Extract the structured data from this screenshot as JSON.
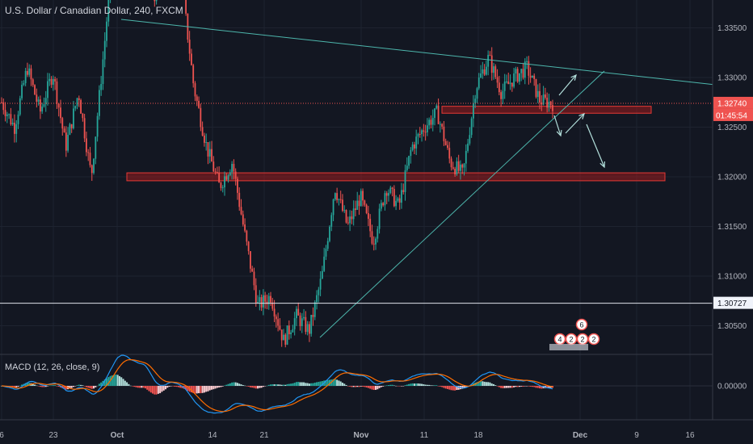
{
  "header": {
    "title": "U.S. Dollar / Canadian Dollar, 240, FXCM"
  },
  "macd": {
    "title": "MACD (12, 26, close, 9)"
  },
  "colors": {
    "bull": "#26a69a",
    "bear": "#ef5350",
    "bg": "#131722",
    "grid": "#1e2330",
    "trend": "#4db6ac",
    "zone": "#b71c1c",
    "arrow": "#b2dfdb"
  },
  "chart_data": {
    "type": "candlestick",
    "yaxis": {
      "ticks": [
        "1.33500",
        "1.33000",
        "1.32500",
        "1.32000",
        "1.31500",
        "1.31000",
        "1.30500"
      ],
      "tick_values": [
        1.335,
        1.33,
        1.325,
        1.32,
        1.315,
        1.31,
        1.305
      ],
      "range": [
        1.3022,
        1.3378
      ]
    },
    "xaxis": {
      "ticks": [
        "6",
        "23",
        "Oct",
        "14",
        "21",
        "Nov",
        "11",
        "18",
        "Dec",
        "9",
        "16"
      ]
    },
    "price_label": "1.32740",
    "countdown": "01:45:54",
    "level_label": "1.30727",
    "macd_zero_label": "0.00000",
    "events": [
      "6",
      "4",
      "2",
      "2",
      "2"
    ],
    "path": [
      1.3275,
      1.325,
      1.331,
      1.3265,
      1.3305,
      1.323,
      1.3285,
      1.32,
      1.333,
      1.347,
      1.344,
      1.348,
      1.337,
      1.344,
      1.34,
      1.329,
      1.323,
      1.319,
      1.3215,
      1.314,
      1.307,
      1.308,
      1.3035,
      1.306,
      1.3045,
      1.31,
      1.319,
      1.315,
      1.318,
      1.3135,
      1.319,
      1.317,
      1.323,
      1.325,
      1.3265,
      1.3215,
      1.3202,
      1.329,
      1.332,
      1.3285,
      1.33,
      1.331,
      1.3277,
      1.3274
    ]
  }
}
